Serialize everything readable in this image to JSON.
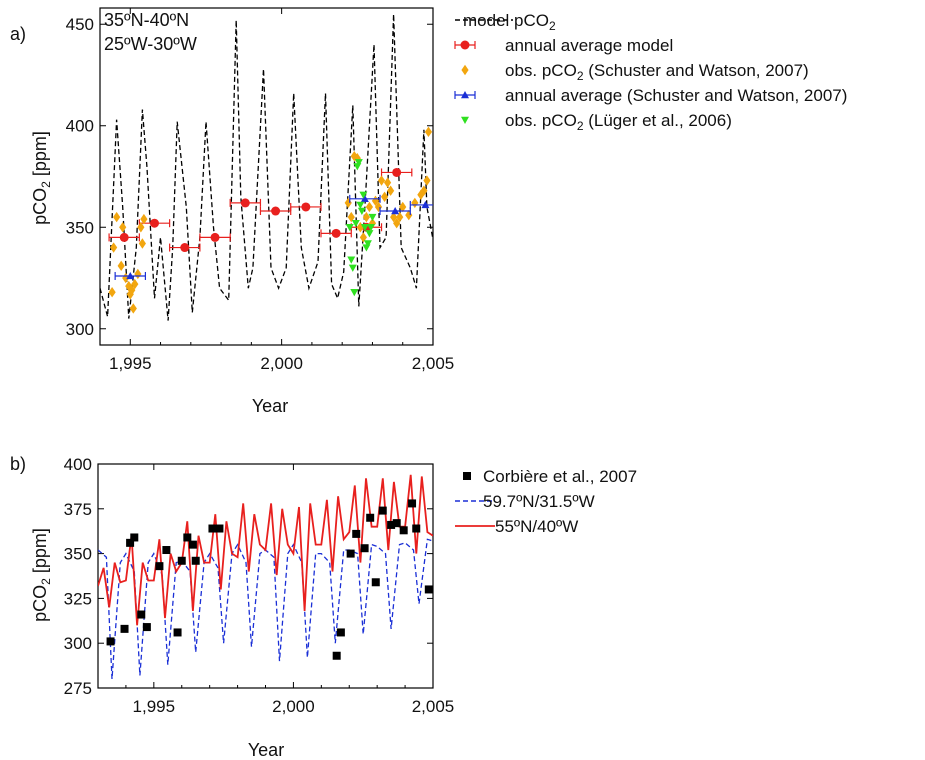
{
  "chart_data": [
    {
      "type": "line",
      "panel_label": "a)",
      "annotation_lines": [
        "35ºN-40ºN",
        "25ºW-30ºW"
      ],
      "xlabel": "Year",
      "ylabel": "pCO2 [ppm]",
      "xlim": [
        1994,
        2005
      ],
      "ylim": [
        292,
        458
      ],
      "x_ticks": [
        1995,
        2000,
        2005
      ],
      "x_tick_labels": [
        "1,995",
        "2,000",
        "2,005"
      ],
      "y_ticks": [
        300,
        350,
        400,
        450
      ],
      "legend_position": "right",
      "series": [
        {
          "name": "model pCO2",
          "style": "dashed-line",
          "color": "#000000",
          "x": [
            1994.0,
            1994.25,
            1994.55,
            1994.75,
            1994.95,
            1995.2,
            1995.4,
            1995.55,
            1995.8,
            1996.0,
            1996.25,
            1996.4,
            1996.55,
            1996.85,
            1997.05,
            1997.3,
            1997.5,
            1997.75,
            1997.95,
            1998.25,
            1998.5,
            1998.65,
            1998.9,
            1999.05,
            1999.4,
            1999.65,
            1999.9,
            2000.15,
            2000.4,
            2000.65,
            2000.9,
            2001.2,
            2001.45,
            2001.65,
            2001.85,
            2002.05,
            2002.35,
            2002.55,
            2002.75,
            2003.05,
            2003.25,
            2003.45,
            2003.7,
            2003.95,
            2004.25,
            2004.45,
            2004.7,
            2004.8,
            2005.0
          ],
          "y": [
            320,
            306,
            403,
            360,
            305,
            340,
            408,
            380,
            315,
            345,
            304,
            340,
            402,
            360,
            308,
            345,
            402,
            350,
            320,
            314,
            452,
            365,
            320,
            330,
            428,
            330,
            320,
            330,
            416,
            340,
            320,
            333,
            416,
            322,
            315,
            328,
            410,
            311,
            360,
            440,
            340,
            345,
            455,
            340,
            330,
            320,
            398,
            360,
            344
          ]
        },
        {
          "name": "annual average model",
          "style": "marker-errorbar",
          "marker": "circle",
          "color": "#e8201e",
          "x": [
            1994.8,
            1995.8,
            1996.8,
            1997.8,
            1998.8,
            1999.8,
            2000.8,
            2001.8,
            2002.8,
            2003.8
          ],
          "y": [
            345,
            352,
            340,
            345,
            362,
            358,
            360,
            347,
            350,
            377
          ],
          "xerr": [
            0.5,
            0.5,
            0.5,
            0.5,
            0.5,
            0.5,
            0.5,
            0.5,
            0.5,
            0.5
          ]
        },
        {
          "name": "obs. pCO2 (Schuster and Watson, 2007)",
          "style": "marker",
          "marker": "diamond",
          "color": "#f2a60f",
          "x": [
            1994.4,
            1994.45,
            1994.55,
            1994.7,
            1994.75,
            1994.85,
            1994.95,
            1995.0,
            1995.05,
            1995.1,
            1995.15,
            1995.25,
            1995.35,
            1995.4,
            1995.45,
            2002.2,
            2002.3,
            2002.4,
            2002.5,
            2002.6,
            2002.7,
            2002.8,
            2002.9,
            2003.0,
            2003.1,
            2003.2,
            2003.3,
            2003.4,
            2003.5,
            2003.6,
            2003.7,
            2003.8,
            2003.9,
            2004.0,
            2004.2,
            2004.4,
            2004.6,
            2004.7,
            2004.8,
            2004.85
          ],
          "y": [
            318,
            340,
            355,
            331,
            350,
            325,
            321,
            317,
            319,
            310,
            322,
            327,
            350,
            342,
            354,
            362,
            355,
            385,
            384,
            350,
            345,
            355,
            360,
            352,
            363,
            360,
            373,
            365,
            372,
            368,
            355,
            352,
            355,
            360,
            356,
            362,
            366,
            368,
            373,
            397
          ]
        },
        {
          "name": "annual average (Schuster and Watson, 2007)",
          "style": "marker-errorbar",
          "marker": "triangle-up",
          "color": "#1a2fd6",
          "x": [
            1995.0,
            2002.75,
            2003.75,
            2004.75
          ],
          "y": [
            326,
            364,
            358,
            361
          ],
          "xerr": [
            0.5,
            0.5,
            0.5,
            0.5
          ]
        },
        {
          "name": "obs. pCO2 (Lüger et al., 2006)",
          "style": "marker",
          "marker": "triangle-down",
          "color": "#2fe020",
          "x": [
            2002.25,
            2002.3,
            2002.35,
            2002.4,
            2002.45,
            2002.5,
            2002.55,
            2002.6,
            2002.65,
            2002.7,
            2002.75,
            2002.8,
            2002.85,
            2002.9,
            2002.95,
            2003.0
          ],
          "y": [
            350,
            334,
            330,
            318,
            352,
            380,
            382,
            361,
            358,
            366,
            350,
            340,
            342,
            347,
            350,
            355
          ]
        }
      ]
    },
    {
      "type": "line",
      "panel_label": "b)",
      "xlabel": "Year",
      "ylabel": "pCO2 [ppm]",
      "xlim": [
        1993,
        2005
      ],
      "ylim": [
        275,
        400
      ],
      "x_ticks": [
        1995,
        2000,
        2005
      ],
      "x_tick_labels": [
        "1,995",
        "2,000",
        "2,005"
      ],
      "y_ticks": [
        275,
        300,
        325,
        350,
        375,
        400
      ],
      "legend_position": "right",
      "series": [
        {
          "name": "Corbière et al., 2007",
          "style": "marker",
          "marker": "square",
          "color": "#000000",
          "x": [
            1993.45,
            1993.95,
            1994.15,
            1994.3,
            1994.55,
            1994.75,
            1995.2,
            1995.45,
            1995.85,
            1996.0,
            1996.2,
            1996.4,
            1996.5,
            1997.1,
            1997.35,
            2001.55,
            2001.7,
            2002.05,
            2002.25,
            2002.55,
            2002.75,
            2002.95,
            2003.2,
            2003.5,
            2003.7,
            2003.95,
            2004.25,
            2004.4,
            2004.85
          ],
          "y": [
            301,
            308,
            356,
            359,
            316,
            309,
            343,
            352,
            306,
            346,
            359,
            355,
            346,
            364,
            364,
            293,
            306,
            350,
            361,
            353,
            370,
            334,
            374,
            366,
            367,
            363,
            378,
            364,
            330
          ]
        },
        {
          "name": "59.7ºN/31.5ºW",
          "style": "dashed-line",
          "color": "#1a2fd6",
          "x": [
            1993.0,
            1993.3,
            1993.5,
            1993.8,
            1994.0,
            1994.3,
            1994.5,
            1994.8,
            1995.0,
            1995.3,
            1995.5,
            1995.8,
            1996.0,
            1996.3,
            1996.5,
            1996.8,
            1997.0,
            1997.3,
            1997.5,
            1997.8,
            1998.0,
            1998.3,
            1998.5,
            1998.8,
            1999.0,
            1999.3,
            1999.5,
            1999.8,
            2000.0,
            2000.3,
            2000.5,
            2000.8,
            2001.0,
            2001.3,
            2001.5,
            2001.8,
            2002.0,
            2002.3,
            2002.5,
            2002.8,
            2003.0,
            2003.3,
            2003.5,
            2003.8,
            2004.0,
            2004.3,
            2004.5,
            2004.8,
            2005.0
          ],
          "y": [
            352,
            348,
            280,
            345,
            350,
            340,
            282,
            345,
            350,
            338,
            288,
            345,
            346,
            340,
            295,
            345,
            350,
            342,
            300,
            350,
            355,
            345,
            298,
            350,
            352,
            348,
            290,
            350,
            355,
            345,
            292,
            350,
            350,
            345,
            300,
            352,
            352,
            350,
            305,
            355,
            354,
            350,
            308,
            355,
            356,
            352,
            322,
            358,
            357
          ]
        },
        {
          "name": "55ºN/40ºW",
          "style": "solid-line",
          "color": "#e8201e",
          "x": [
            1993.0,
            1993.2,
            1993.4,
            1993.6,
            1993.8,
            1994.0,
            1994.2,
            1994.4,
            1994.6,
            1994.8,
            1995.0,
            1995.2,
            1995.4,
            1995.6,
            1995.8,
            1996.0,
            1996.2,
            1996.4,
            1996.6,
            1996.8,
            1997.0,
            1997.2,
            1997.4,
            1997.6,
            1997.8,
            1998.0,
            1998.2,
            1998.4,
            1998.6,
            1998.8,
            1999.0,
            1999.2,
            1999.4,
            1999.6,
            1999.8,
            2000.0,
            2000.2,
            2000.4,
            2000.6,
            2000.8,
            2001.0,
            2001.2,
            2001.4,
            2001.6,
            2001.8,
            2002.0,
            2002.2,
            2002.4,
            2002.6,
            2002.8,
            2003.0,
            2003.2,
            2003.4,
            2003.6,
            2003.8,
            2004.0,
            2004.2,
            2004.4,
            2004.6,
            2004.8,
            2005.0
          ],
          "y": [
            332,
            342,
            320,
            345,
            334,
            335,
            360,
            310,
            345,
            335,
            335,
            358,
            314,
            350,
            340,
            345,
            368,
            318,
            360,
            345,
            345,
            372,
            330,
            368,
            350,
            348,
            378,
            340,
            372,
            355,
            352,
            378,
            338,
            375,
            355,
            350,
            376,
            318,
            378,
            355,
            355,
            380,
            340,
            382,
            358,
            362,
            388,
            345,
            392,
            365,
            365,
            392,
            352,
            390,
            365,
            365,
            394,
            350,
            393,
            362,
            360
          ]
        }
      ]
    }
  ]
}
